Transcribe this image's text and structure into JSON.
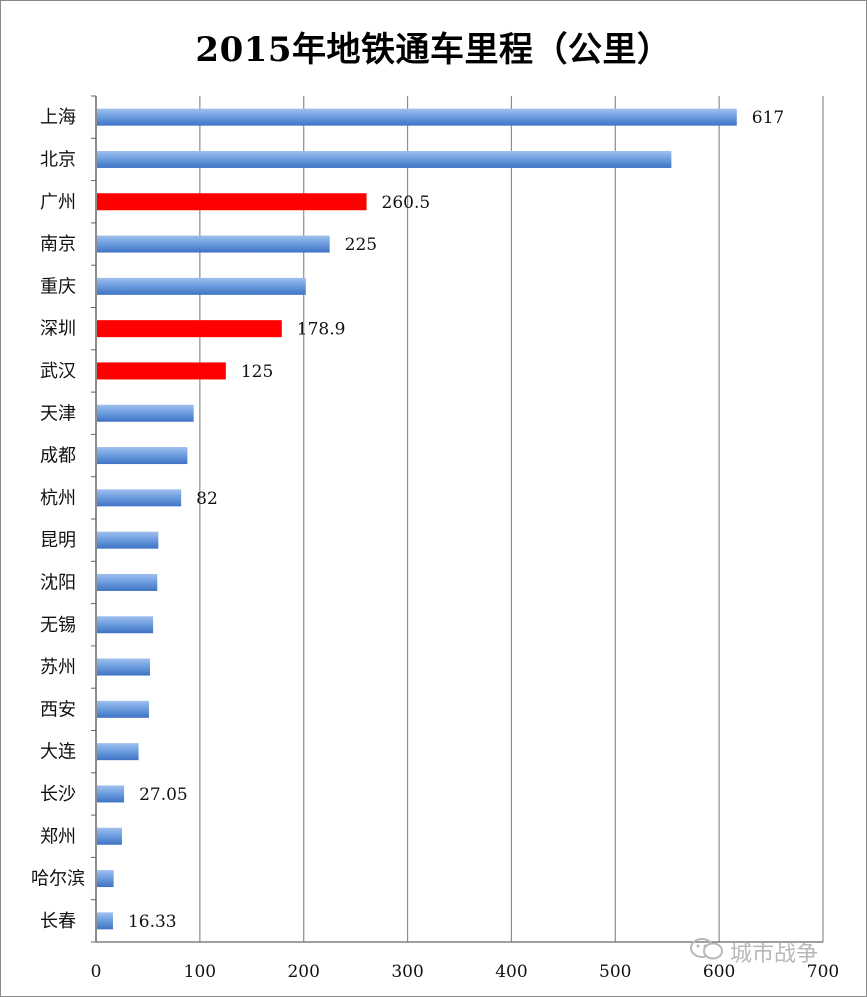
{
  "title": "2015年地铁通车里程（公里）",
  "watermark": "城市战争",
  "colors": {
    "blue": "#5b8fd9",
    "blue_light": "#a9c6f0",
    "red": "#ff0000",
    "grid": "#8c8c8c"
  },
  "chart_data": {
    "type": "bar",
    "orientation": "horizontal",
    "title": "2015年地铁通车里程（公里）",
    "xlim": [
      0,
      700
    ],
    "xticks": [
      0,
      100,
      200,
      300,
      400,
      500,
      600,
      700
    ],
    "grid": "vertical",
    "categories": [
      "上海",
      "北京",
      "广州",
      "南京",
      "重庆",
      "深圳",
      "武汉",
      "天津",
      "成都",
      "杭州",
      "昆明",
      "沈阳",
      "无锡",
      "苏州",
      "西安",
      "大连",
      "长沙",
      "郑州",
      "哈尔滨",
      "长春"
    ],
    "values": [
      617,
      554,
      260.5,
      225,
      202,
      178.9,
      125,
      94,
      88,
      82,
      60,
      59,
      55,
      52,
      51,
      41,
      27.05,
      25,
      17,
      16.33
    ],
    "highlighted": [
      "广州",
      "深圳",
      "武汉"
    ],
    "data_labels": {
      "上海": "617",
      "广州": "260.5",
      "南京": "225",
      "深圳": "178.9",
      "武汉": "125",
      "杭州": "82",
      "长沙": "27.05",
      "长春": "16.33"
    }
  }
}
